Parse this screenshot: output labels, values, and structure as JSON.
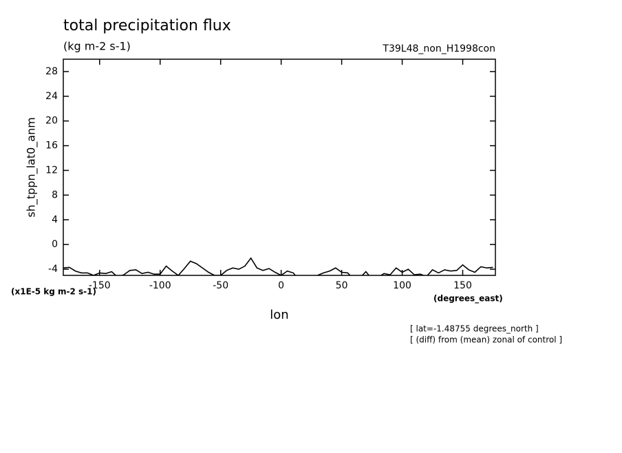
{
  "chart_data": {
    "type": "line",
    "title": "total precipitation flux",
    "subtitle": "(kg m-2 s-1)",
    "experiment": "T39L48_non_H1998con",
    "y_label": "sh_tppn_lat0_anm",
    "y_unit": "(x1E-5 kg m-2 s-1)",
    "x_label": "lon",
    "x_unit": "(degrees_east)",
    "notes": [
      "[ lat=-1.48755 degrees_north ]",
      "[ (diff) from (mean) zonal of control ]"
    ],
    "x": [
      -180,
      -175,
      -170,
      -165,
      -160,
      -155,
      -150,
      -145,
      -140,
      -135,
      -130,
      -125,
      -120,
      -115,
      -110,
      -105,
      -100,
      -95,
      -90,
      -85,
      -80,
      -75,
      -70,
      -65,
      -60,
      -55,
      -50,
      -45,
      -40,
      -35,
      -30,
      -25,
      -20,
      -15,
      -10,
      -5,
      0,
      5,
      10,
      15,
      20,
      25,
      30,
      35,
      40,
      45,
      50,
      55,
      60,
      65,
      70,
      75,
      80,
      85,
      90,
      95,
      100,
      105,
      110,
      115,
      120,
      125,
      130,
      135,
      140,
      145,
      150,
      155,
      160,
      165,
      170,
      175
    ],
    "series": [
      {
        "color": "#000000",
        "values": [
          -3.8,
          -3.7,
          -4.3,
          -4.6,
          -4.6,
          -5.0,
          -4.6,
          -4.7,
          -4.4,
          -5.3,
          -4.9,
          -4.2,
          -4.1,
          -4.7,
          -4.5,
          -4.8,
          -4.8,
          -3.5,
          -4.3,
          -5.0,
          -3.9,
          -2.7,
          -3.1,
          -3.8,
          -4.5,
          -5.0,
          -5.0,
          -4.2,
          -3.8,
          -4.0,
          -3.5,
          -2.2,
          -3.8,
          -4.2,
          -3.9,
          -4.5,
          -5.0,
          -4.3,
          -4.6,
          -5.8,
          -5.5,
          -5.2,
          -5.0,
          -4.6,
          -4.3,
          -3.8,
          -4.5,
          -4.6,
          -5.7,
          -5.4,
          -4.4,
          -5.6,
          -5.3,
          -4.7,
          -4.9,
          -3.8,
          -4.5,
          -4.0,
          -4.9,
          -4.8,
          -5.2,
          -4.1,
          -4.6,
          -4.1,
          -4.3,
          -4.2,
          -3.3,
          -4.1,
          -4.5,
          -3.6,
          -3.8,
          -3.7
        ]
      }
    ],
    "xlim": [
      -180,
      177
    ],
    "ylim": [
      -5,
      30
    ],
    "xticks": [
      -150,
      -100,
      -50,
      0,
      50,
      100,
      150
    ],
    "yticks": [
      -4,
      0,
      4,
      8,
      12,
      16,
      20,
      24,
      28
    ]
  }
}
